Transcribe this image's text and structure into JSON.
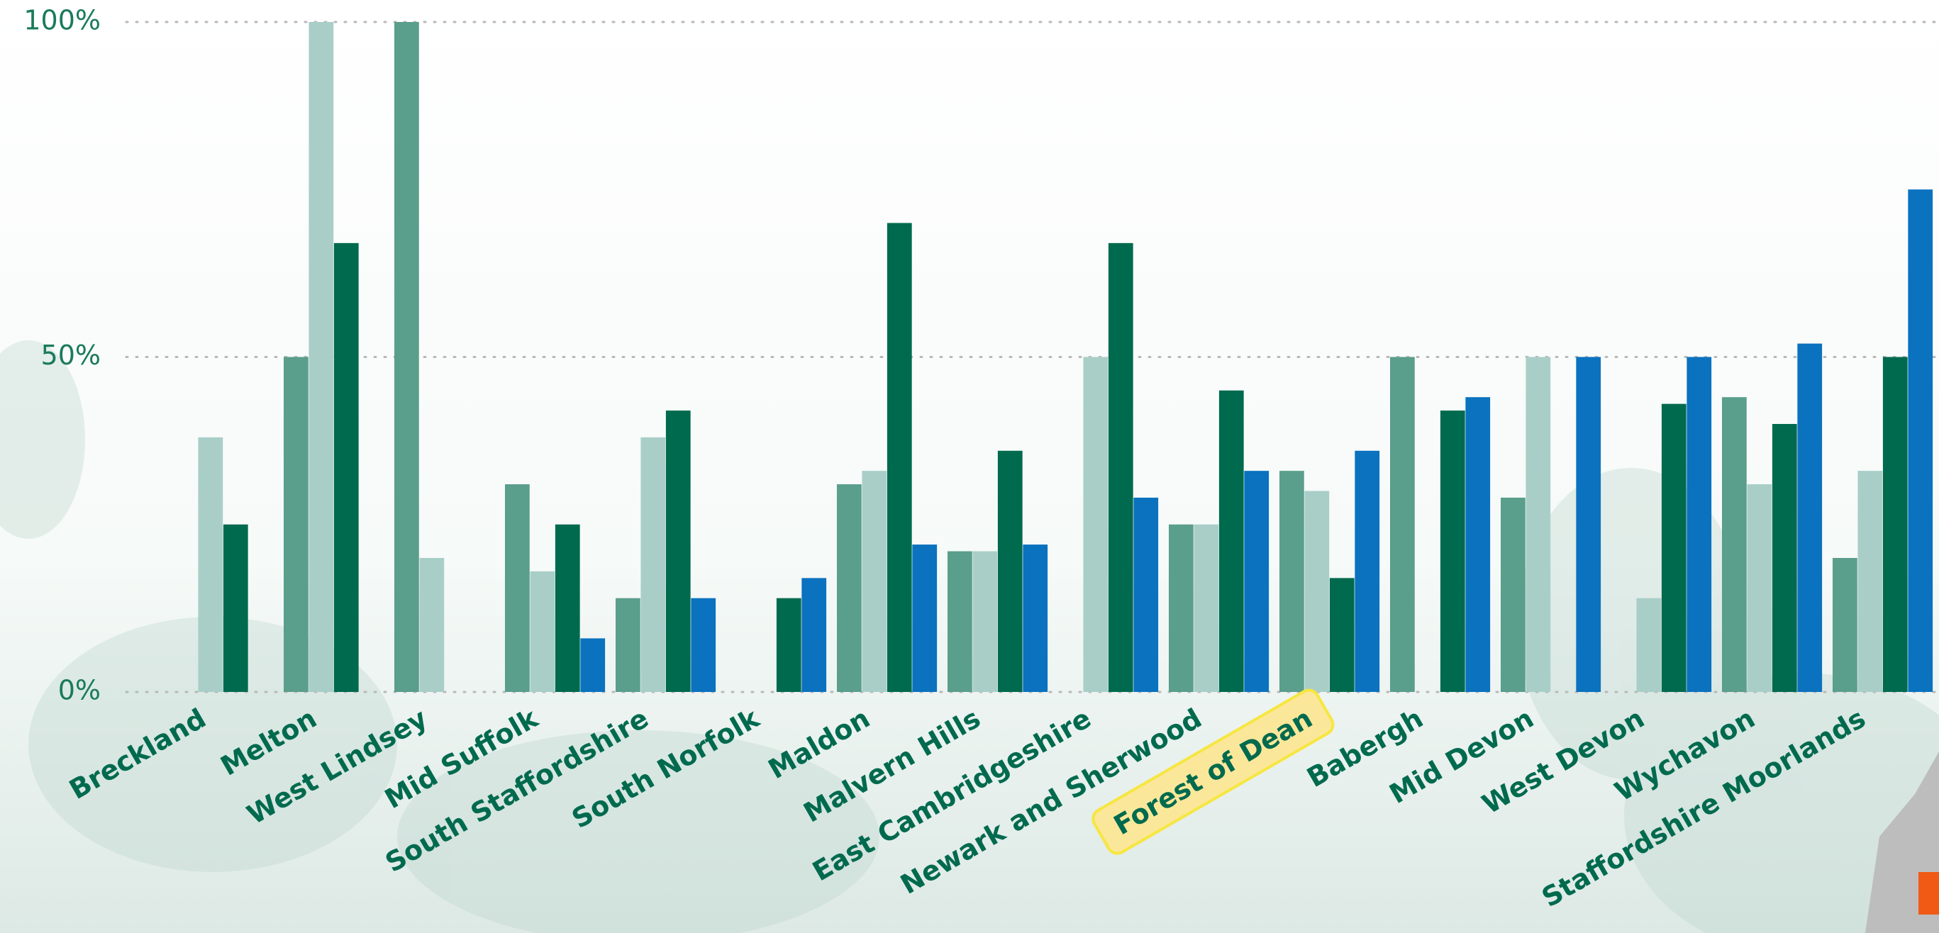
{
  "chart_data": {
    "type": "bar",
    "categories": [
      "Breckland",
      "Melton",
      "West Lindsey",
      "Mid Suffolk",
      "South Staffordshire",
      "South Norfolk",
      "Maldon",
      "Malvern Hills",
      "East Cambridgeshire",
      "Newark and Sherwood",
      "Forest of Dean",
      "Babergh",
      "Mid Devon",
      "West Devon",
      "Wychavon",
      "Staffordshire Moorlands"
    ],
    "series": [
      {
        "color": "#5a9e8c",
        "values": [
          null,
          50,
          100,
          31,
          14,
          null,
          31,
          21,
          null,
          25,
          33,
          50,
          29,
          null,
          44,
          20
        ]
      },
      {
        "color": "#a9cec8",
        "values": [
          38,
          100,
          20,
          18,
          38,
          null,
          33,
          21,
          50,
          25,
          30,
          null,
          50,
          14,
          31,
          33
        ]
      },
      {
        "color": "#006a4e",
        "values": [
          25,
          67,
          null,
          25,
          42,
          14,
          70,
          36,
          67,
          45,
          17,
          42,
          null,
          43,
          40,
          50
        ]
      },
      {
        "color": "#0a72bf",
        "values": [
          null,
          null,
          null,
          8,
          14,
          17,
          22,
          22,
          29,
          33,
          36,
          44,
          50,
          50,
          52,
          75
        ]
      }
    ],
    "ylim": [
      0,
      100
    ],
    "yticks": [
      {
        "value": 0,
        "label": "0%"
      },
      {
        "value": 50,
        "label": "50%"
      },
      {
        "value": 100,
        "label": "100%"
      }
    ],
    "grid": true,
    "highlight_category": 10
  }
}
